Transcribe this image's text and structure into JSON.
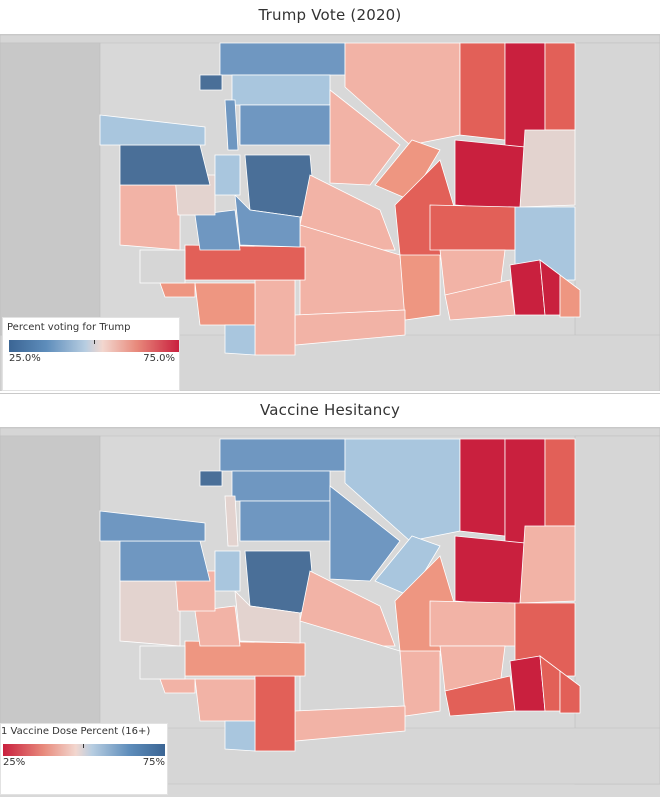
{
  "top": {
    "title": "Trump Vote (2020)",
    "legend": {
      "title": "Percent voting for Trump",
      "min": "25.0%",
      "max": "75.0%"
    }
  },
  "bottom": {
    "title": "Vaccine Hesitancy",
    "legend": {
      "title": "1 Vaccine Dose Percent (16+)",
      "min": "25%",
      "max": "75%"
    }
  },
  "colors": {
    "dark_blue": "#4a6f98",
    "blue": "#6f97c1",
    "light_blue": "#a9c6de",
    "pale": "#e3d3cf",
    "light_red": "#f2b3a6",
    "salmon": "#ee9681",
    "red": "#e26058",
    "dark_red": "#c9203e",
    "gray_state": "#d6d6d6",
    "water": "#c8c8c8"
  }
}
